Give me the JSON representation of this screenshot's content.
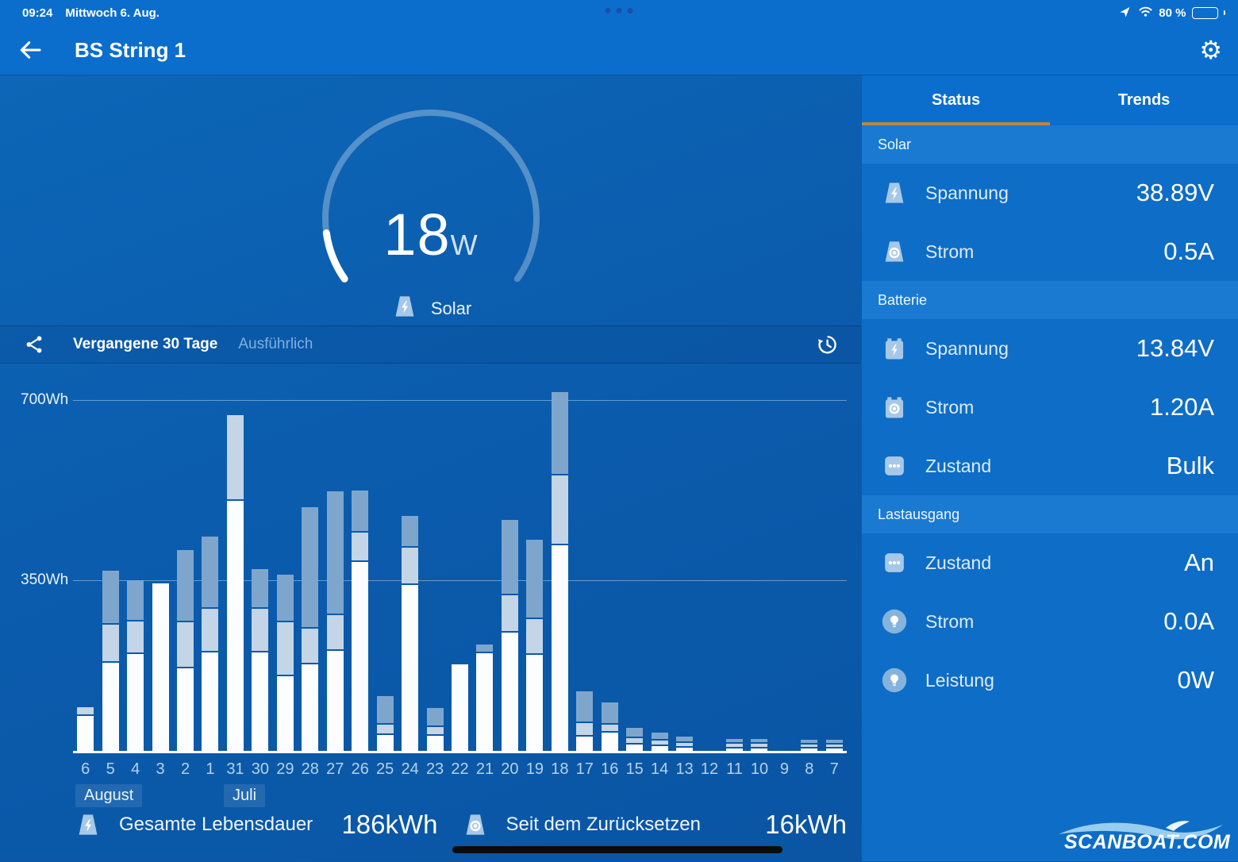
{
  "statusbar": {
    "time": "09:24",
    "date": "Mittwoch 6. Aug.",
    "battery_percent": "80 %"
  },
  "navbar": {
    "title": "BS String 1"
  },
  "gauge": {
    "value": "18",
    "unit": "W",
    "label": "Solar"
  },
  "chart_header": {
    "period": "Vergangene 30 Tage",
    "detail": "Ausführlich"
  },
  "chart_data": {
    "type": "bar",
    "title": "Vergangene 30 Tage",
    "unit": "Wh",
    "y_ticks": [
      "700Wh",
      "350Wh"
    ],
    "ylim": [
      0,
      760
    ],
    "grid": true,
    "categories": [
      "6",
      "5",
      "4",
      "3",
      "2",
      "1",
      "31",
      "30",
      "29",
      "28",
      "27",
      "26",
      "25",
      "24",
      "23",
      "22",
      "21",
      "20",
      "19",
      "18",
      "17",
      "16",
      "15",
      "14",
      "13",
      "12",
      "11",
      "10",
      "9",
      "8",
      "7"
    ],
    "month_markers": [
      {
        "label": "August",
        "at": "6"
      },
      {
        "label": "Juli",
        "at": "31"
      }
    ],
    "series": [
      {
        "name": "yield-bottom",
        "color": "#fbfdff",
        "values": [
          70,
          177,
          195,
          337,
          166,
          198,
          504,
          198,
          150,
          174,
          201,
          380,
          32,
          335,
          30,
          174,
          196,
          238,
          193,
          415,
          29,
          36,
          12,
          9,
          7,
          0,
          5,
          5,
          0,
          5,
          5
        ]
      },
      {
        "name": "yield-middle",
        "color": "#c3d5e7",
        "values": [
          15,
          74,
          63,
          0,
          89,
          85,
          169,
          85,
          105,
          69,
          69,
          56,
          18,
          72,
          15,
          0,
          0,
          72,
          68,
          137,
          24,
          12,
          10,
          8,
          7,
          0,
          6,
          6,
          0,
          5,
          5
        ]
      },
      {
        "name": "yield-top",
        "color": "#7ea6cd",
        "values": [
          0,
          105,
          80,
          0,
          143,
          142,
          0,
          76,
          92,
          242,
          246,
          82,
          55,
          61,
          35,
          0,
          15,
          148,
          156,
          164,
          60,
          42,
          18,
          12,
          10,
          0,
          7,
          7,
          0,
          6,
          6
        ]
      }
    ]
  },
  "summary": {
    "items": [
      {
        "icon": "solar-bolt",
        "label": "Gesamte Lebensdauer",
        "value": "186kWh"
      },
      {
        "icon": "solar-dot",
        "label": "Seit dem Zurücksetzen",
        "value": "16kWh"
      }
    ]
  },
  "panel": {
    "tabs": [
      {
        "label": "Status",
        "active": true
      },
      {
        "label": "Trends",
        "active": false
      }
    ],
    "sections": [
      {
        "title": "Solar",
        "rows": [
          {
            "icon": "solar-bolt",
            "label": "Spannung",
            "value": "38.89V"
          },
          {
            "icon": "solar-dot",
            "label": "Strom",
            "value": "0.5A"
          }
        ]
      },
      {
        "title": "Batterie",
        "rows": [
          {
            "icon": "battery-bolt",
            "label": "Spannung",
            "value": "13.84V"
          },
          {
            "icon": "battery-dot",
            "label": "Strom",
            "value": "1.20A"
          },
          {
            "icon": "dots",
            "label": "Zustand",
            "value": "Bulk"
          }
        ]
      },
      {
        "title": "Lastausgang",
        "rows": [
          {
            "icon": "dots",
            "label": "Zustand",
            "value": "An"
          },
          {
            "icon": "bulb",
            "label": "Strom",
            "value": "0.0A"
          },
          {
            "icon": "bulb",
            "label": "Leistung",
            "value": "0W"
          }
        ]
      }
    ]
  },
  "watermark": {
    "text": "SCANBOAT.COM"
  },
  "colors": {
    "header_bg": "#0b6ecd",
    "panel_bg": "#0e6dc6",
    "section_band_bg": "#1a7ad2",
    "tab_underline": "#bd8440",
    "bar_white": "#fbfdff",
    "bar_pale": "#c3d5e7",
    "bar_steel": "#7ea6cd",
    "icon_blue": "#a6c8e8"
  }
}
